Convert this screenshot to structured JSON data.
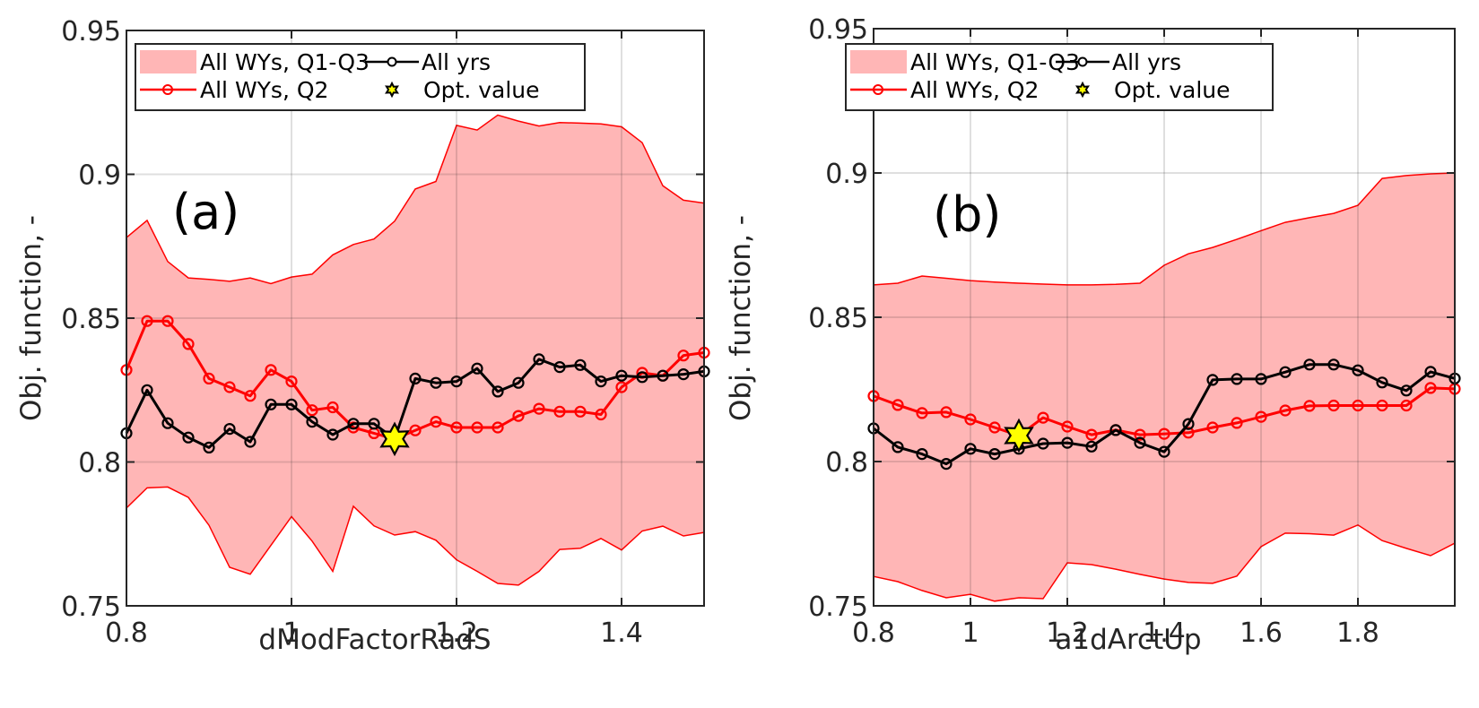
{
  "chart_data": [
    {
      "type": "line",
      "panel_label": "(a)",
      "xlabel": "dModFactorRadS",
      "ylabel": "Obj. function, -",
      "xlim": [
        0.8,
        1.5
      ],
      "ylim": [
        0.75,
        0.95
      ],
      "xticks": [
        0.8,
        1.0,
        1.2,
        1.4
      ],
      "xtick_labels": [
        "0.8",
        "1",
        "1.2",
        "1.4"
      ],
      "yticks": [
        0.75,
        0.8,
        0.85,
        0.9,
        0.95
      ],
      "ytick_labels": [
        "0.75",
        "0.8",
        "0.85",
        "0.9",
        "0.95"
      ],
      "grid": true,
      "legend_position": "top",
      "legend": [
        "All WYs, Q1-Q3",
        "All yrs",
        "All WYs, Q2",
        "Opt. value"
      ],
      "x": [
        0.8,
        0.825,
        0.85,
        0.875,
        0.9,
        0.925,
        0.95,
        0.975,
        1.0,
        1.025,
        1.05,
        1.075,
        1.1,
        1.125,
        1.15,
        1.175,
        1.2,
        1.225,
        1.25,
        1.275,
        1.3,
        1.325,
        1.35,
        1.375,
        1.4,
        1.425,
        1.45,
        1.475,
        1.5
      ],
      "series": [
        {
          "name": "All WYs, Q1-Q3",
          "kind": "band",
          "lower": [
            0.784,
            0.791,
            0.7913,
            0.7877,
            0.778,
            0.7634,
            0.761,
            0.771,
            0.781,
            0.7725,
            0.762,
            0.7846,
            0.7778,
            0.7746,
            0.7758,
            0.7728,
            0.766,
            0.762,
            0.7578,
            0.7572,
            0.762,
            0.7696,
            0.77,
            0.7734,
            0.7694,
            0.776,
            0.7777,
            0.7743,
            0.7755
          ],
          "upper": [
            0.878,
            0.884,
            0.8697,
            0.864,
            0.8635,
            0.8628,
            0.864,
            0.862,
            0.8643,
            0.8653,
            0.872,
            0.8756,
            0.8775,
            0.8837,
            0.8949,
            0.8975,
            0.917,
            0.9154,
            0.9206,
            0.9185,
            0.9168,
            0.918,
            0.9178,
            0.9175,
            0.9165,
            0.911,
            0.896,
            0.891,
            0.89
          ],
          "color": "#ffb6b6",
          "edge_color": "#ff0000"
        },
        {
          "name": "All WYs, Q2",
          "kind": "line",
          "color": "#ff0000",
          "values": [
            0.832,
            0.849,
            0.849,
            0.841,
            0.829,
            0.826,
            0.823,
            0.832,
            0.828,
            0.818,
            0.819,
            0.812,
            0.81,
            0.808,
            0.811,
            0.814,
            0.812,
            0.812,
            0.812,
            0.816,
            0.8185,
            0.8175,
            0.8175,
            0.8165,
            0.826,
            0.831,
            0.83,
            0.837,
            0.838
          ]
        },
        {
          "name": "All yrs",
          "kind": "line",
          "color": "#000000",
          "values": [
            0.81,
            0.825,
            0.8135,
            0.8085,
            0.805,
            0.8115,
            0.807,
            0.82,
            0.82,
            0.814,
            0.8095,
            0.8133,
            0.8133,
            0.808,
            0.829,
            0.8275,
            0.828,
            0.8325,
            0.8245,
            0.8275,
            0.8357,
            0.833,
            0.8337,
            0.828,
            0.83,
            0.8295,
            0.83,
            0.8305,
            0.8315
          ]
        }
      ],
      "optimum": {
        "name": "Opt. value",
        "x": 1.125,
        "y": 0.808,
        "color": "#ffff00"
      }
    },
    {
      "type": "line",
      "panel_label": "(b)",
      "xlabel": "a1dArctUp",
      "ylabel": "Obj. function, -",
      "xlim": [
        0.8,
        2.0
      ],
      "ylim": [
        0.75,
        0.95
      ],
      "xticks": [
        0.8,
        1.0,
        1.2,
        1.4,
        1.6,
        1.8
      ],
      "xtick_labels": [
        "0.8",
        "1",
        "1.2",
        "1.4",
        "1.6",
        "1.8"
      ],
      "yticks": [
        0.75,
        0.8,
        0.85,
        0.9,
        0.95
      ],
      "ytick_labels": [
        "0.75",
        "0.8",
        "0.85",
        "0.9",
        "0.95"
      ],
      "grid": true,
      "legend_position": "top",
      "legend": [
        "All WYs, Q1-Q3",
        "All yrs",
        "All WYs, Q2",
        "Opt. value"
      ],
      "x": [
        0.8,
        0.85,
        0.9,
        0.95,
        1.0,
        1.05,
        1.1,
        1.15,
        1.2,
        1.25,
        1.3,
        1.35,
        1.4,
        1.45,
        1.5,
        1.55,
        1.6,
        1.65,
        1.7,
        1.75,
        1.8,
        1.85,
        1.9,
        1.95,
        2.0
      ],
      "series": [
        {
          "name": "All WYs, Q1-Q3",
          "kind": "band",
          "lower": [
            0.7602,
            0.7584,
            0.7553,
            0.7528,
            0.754,
            0.7516,
            0.7528,
            0.7525,
            0.7649,
            0.7643,
            0.7627,
            0.7609,
            0.7593,
            0.7581,
            0.7578,
            0.7603,
            0.7705,
            0.7752,
            0.775,
            0.7745,
            0.778,
            0.7726,
            0.7699,
            0.7674,
            0.7717
          ],
          "upper": [
            0.8612,
            0.8618,
            0.8643,
            0.8635,
            0.8627,
            0.8622,
            0.8618,
            0.8615,
            0.8612,
            0.8612,
            0.8614,
            0.8618,
            0.868,
            0.872,
            0.8742,
            0.877,
            0.88,
            0.8829,
            0.8845,
            0.886,
            0.8888,
            0.8981,
            0.8991,
            0.8997,
            0.9
          ],
          "color": "#ffb6b6",
          "edge_color": "#ff0000"
        },
        {
          "name": "All WYs, Q2",
          "kind": "line",
          "color": "#ff0000",
          "values": [
            0.8227,
            0.8196,
            0.8168,
            0.8171,
            0.8146,
            0.8118,
            0.809,
            0.8152,
            0.8121,
            0.8093,
            0.8109,
            0.8093,
            0.8096,
            0.81,
            0.8118,
            0.8134,
            0.8155,
            0.8177,
            0.8193,
            0.8194,
            0.8194,
            0.8194,
            0.8194,
            0.8255,
            0.8252
          ]
        },
        {
          "name": "All yrs",
          "kind": "line",
          "color": "#000000",
          "values": [
            0.8115,
            0.805,
            0.8026,
            0.7992,
            0.8044,
            0.8026,
            0.8044,
            0.8062,
            0.8065,
            0.8052,
            0.8109,
            0.8065,
            0.8034,
            0.813,
            0.8283,
            0.8286,
            0.8286,
            0.831,
            0.8336,
            0.8336,
            0.8316,
            0.8274,
            0.8246,
            0.8311,
            0.8288
          ]
        }
      ],
      "optimum": {
        "name": "Opt. value",
        "x": 1.1,
        "y": 0.809,
        "color": "#ffff00"
      }
    }
  ]
}
